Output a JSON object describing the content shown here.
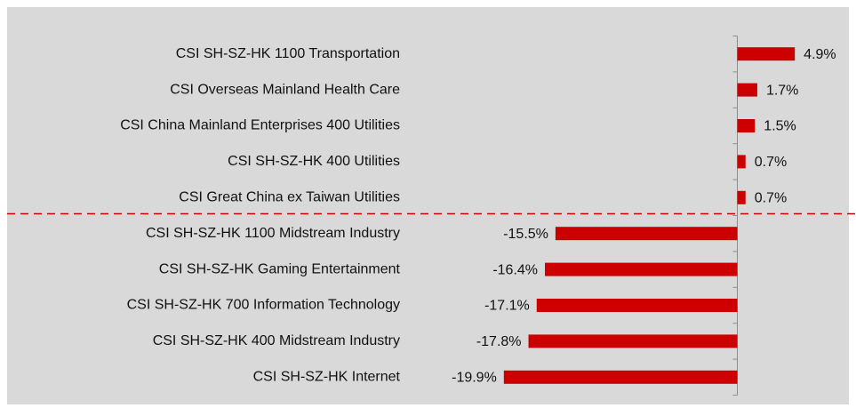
{
  "chart_data": {
    "type": "barh",
    "categories": [
      "CSI SH-SZ-HK 1100 Transportation",
      "CSI Overseas Mainland Health Care",
      "CSI China Mainland Enterprises 400 Utilities",
      "CSI SH-SZ-HK 400 Utilities",
      "CSI Great China ex Taiwan Utilities",
      "CSI SH-SZ-HK 1100 Midstream Industry",
      "CSI SH-SZ-HK Gaming Entertainment",
      "CSI SH-SZ-HK 700 Information Technology",
      "CSI SH-SZ-HK 400 Midstream Industry",
      "CSI SH-SZ-HK Internet"
    ],
    "values": [
      4.9,
      1.7,
      1.5,
      0.7,
      0.7,
      -15.5,
      -16.4,
      -17.1,
      -17.8,
      -19.9
    ],
    "value_labels": [
      "4.9%",
      "1.7%",
      "1.5%",
      "0.7%",
      "0.7%",
      "-15.5%",
      "-16.4%",
      "-17.1%",
      "-17.8%",
      "-19.9%"
    ],
    "color": "#cc0000"
  }
}
